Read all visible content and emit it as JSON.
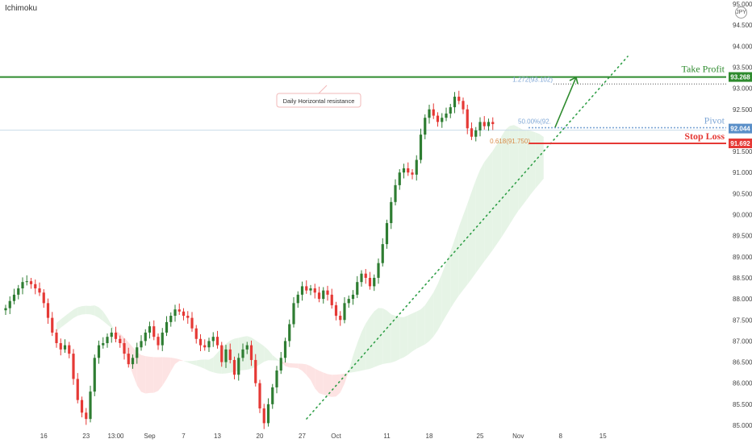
{
  "indicator": "Ichimoku",
  "symbol_badge": "JPY",
  "colors": {
    "bull": "#26a69a",
    "bear": "#ef5350",
    "bull_candle": "#2e7d32",
    "bear_candle": "#e53935",
    "take_profit": "#2e8b2e",
    "stop_loss": "#e53935",
    "pivot": "#7fa7d6",
    "fib_text": "#d98c4a",
    "cloud_green": "#e6f4e6",
    "cloud_red": "#fde3e3"
  },
  "chart_data": {
    "type": "candlestick",
    "ylim": [
      85.0,
      95.0
    ],
    "y_ticks": [
      "85.000",
      "85.500",
      "86.000",
      "86.500",
      "87.000",
      "87.500",
      "88.000",
      "88.500",
      "89.000",
      "89.500",
      "90.000",
      "90.500",
      "91.000",
      "91.500",
      "92.000",
      "92.500",
      "93.000",
      "93.500",
      "94.000",
      "94.500",
      "95.000"
    ],
    "x_ticks": [
      {
        "label": "16",
        "index": 9
      },
      {
        "label": "23",
        "index": 19
      },
      {
        "label": "13:00",
        "index": 26
      },
      {
        "label": "Sep",
        "index": 34
      },
      {
        "label": "7",
        "index": 42
      },
      {
        "label": "13",
        "index": 50
      },
      {
        "label": "20",
        "index": 60
      },
      {
        "label": "27",
        "index": 70
      },
      {
        "label": "Oct",
        "index": 78
      },
      {
        "label": "11",
        "index": 90
      },
      {
        "label": "18",
        "index": 100
      },
      {
        "label": "25",
        "index": 112
      },
      {
        "label": "Nov",
        "index": 121
      },
      {
        "label": "8",
        "index": 131
      },
      {
        "label": "15",
        "index": 141
      }
    ],
    "levels": [
      {
        "name": "Take Profit",
        "value": 93.268,
        "value_label": "93.268"
      },
      {
        "name": "Pivot",
        "value": 92.044,
        "value_label": "92.044"
      },
      {
        "name": "Stop Loss",
        "value": 91.692,
        "value_label": "91.692"
      }
    ],
    "fib_labels": [
      "1.272(93.102)",
      "50.00%(92.",
      "0.618(91.750)"
    ],
    "annotation": "Daily Horizontal resistance",
    "closes": [
      87.78,
      87.95,
      88.1,
      88.25,
      88.4,
      88.42,
      88.35,
      88.25,
      88.15,
      87.9,
      87.55,
      87.2,
      86.95,
      86.8,
      86.9,
      86.7,
      86.1,
      85.6,
      85.3,
      85.15,
      85.8,
      86.6,
      86.9,
      86.95,
      87.1,
      87.2,
      87.05,
      86.95,
      86.7,
      86.45,
      86.6,
      86.85,
      87.0,
      87.2,
      87.35,
      87.1,
      86.9,
      87.2,
      87.45,
      87.6,
      87.75,
      87.7,
      87.6,
      87.55,
      87.3,
      87.05,
      86.9,
      86.85,
      87.0,
      87.1,
      86.9,
      86.5,
      86.8,
      86.55,
      86.2,
      86.6,
      86.8,
      86.9,
      86.55,
      86.0,
      85.4,
      85.05,
      85.5,
      85.9,
      86.3,
      86.6,
      87.0,
      87.4,
      87.9,
      88.1,
      88.3,
      88.2,
      88.25,
      88.15,
      88.0,
      88.2,
      88.1,
      87.85,
      87.6,
      87.5,
      87.9,
      88.0,
      88.1,
      88.4,
      88.6,
      88.5,
      88.3,
      88.5,
      88.85,
      89.3,
      89.8,
      90.3,
      90.7,
      91.0,
      91.1,
      91.0,
      90.95,
      91.3,
      91.9,
      92.3,
      92.5,
      92.35,
      92.2,
      92.3,
      92.4,
      92.55,
      92.8,
      92.7,
      92.5,
      92.05,
      91.85,
      92.0,
      92.2,
      92.1,
      92.2,
      92.15
    ]
  }
}
